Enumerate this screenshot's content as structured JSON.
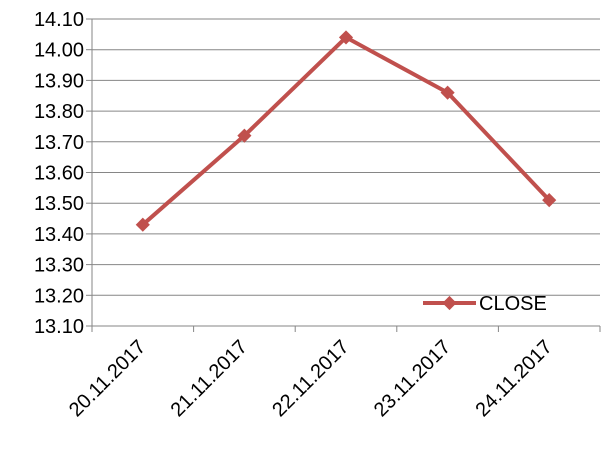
{
  "chart_data": {
    "type": "line",
    "categories": [
      "20.11.2017",
      "21.11.2017",
      "22.11.2017",
      "23.11.2017",
      "24.11.2017"
    ],
    "series": [
      {
        "name": "CLOSE",
        "values": [
          13.43,
          13.72,
          14.04,
          13.86,
          13.51
        ],
        "color": "#C0504D",
        "marker": "diamond"
      }
    ],
    "ylim": [
      13.1,
      14.1
    ],
    "yticks": [
      "13.10",
      "13.20",
      "13.30",
      "13.40",
      "13.50",
      "13.60",
      "13.70",
      "13.80",
      "13.90",
      "14.00",
      "14.10"
    ],
    "grid": true,
    "legend": "bottom-right, inside plot",
    "gridline_color": "#868686",
    "axis_color": "#868686"
  }
}
